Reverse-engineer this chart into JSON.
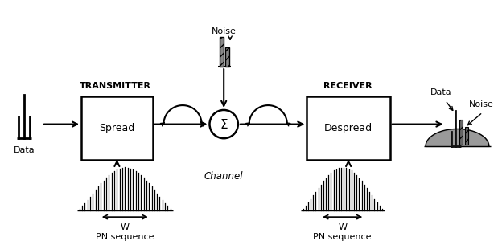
{
  "bg_color": "#ffffff",
  "line_color": "#000000",
  "gray_color": "#666666",
  "dark_color": "#111111",
  "spread_label": "Spread",
  "despread_label": "Despread",
  "transmitter_label": "TRANSMITTER",
  "receiver_label": "RECEIVER",
  "channel_label": "Channel",
  "noise_label_top": "Noise",
  "noise_label_right": "Noise",
  "data_label_left": "Data",
  "data_label_right": "Data",
  "w_label": "W",
  "pn_label": "PN sequence",
  "sigma_label": "Σ"
}
